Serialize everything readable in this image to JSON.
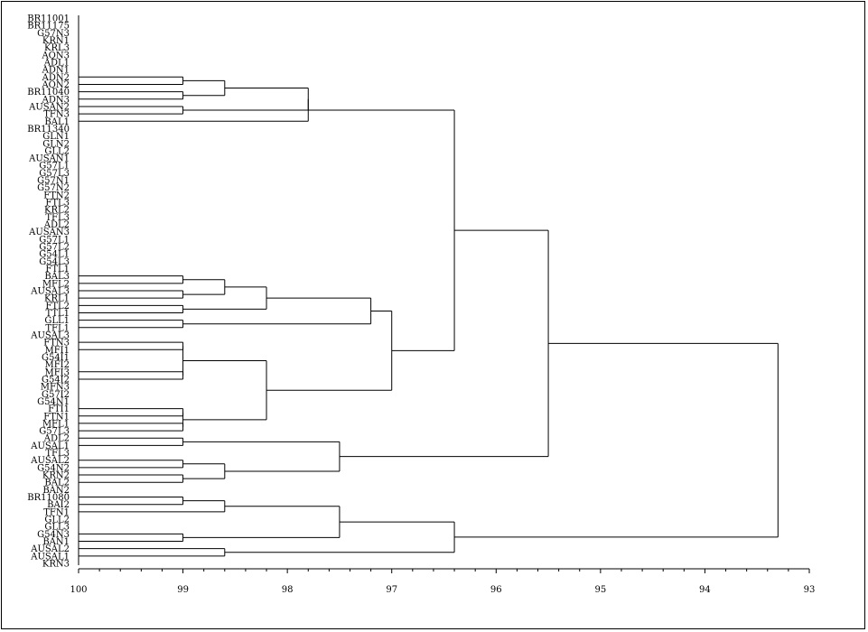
{
  "chart_data": {
    "type": "dendrogram",
    "title": "",
    "xlabel": "",
    "ylabel": "",
    "xlim": [
      100,
      93
    ],
    "x_ticks": [
      "100",
      "99",
      "98",
      "97",
      "96",
      "95",
      "94",
      "93"
    ],
    "leaves": [
      "BR11001",
      "BR11175",
      "G57N3",
      "KRN1",
      "KRL3",
      "AQN3",
      "ADL1",
      "ADN1",
      "ADN2",
      "AQN2",
      "BR11040",
      "ADN3",
      "AUSAN2",
      "TFN3",
      "BAL1",
      "BR11340",
      "GLN1",
      "GLN2",
      "GLL2",
      "AUSAN1",
      "G57L1",
      "G57L3",
      "G57N1",
      "G57N2",
      "FTN2",
      "FTL3",
      "KRL2",
      "TFL3",
      "ADL2",
      "AUSAN3",
      "G57L1",
      "G57L2",
      "G54L1",
      "G54L3",
      "FTL1",
      "BAL3",
      "MFL2",
      "AUSAL3",
      "KRL1",
      "FTL2",
      "TTL1",
      "GLL1",
      "TFL1",
      "AUSAL3",
      "FTN3",
      "MFI1",
      "G54I1",
      "MFI2",
      "MFI3",
      "G54I2",
      "MFN3",
      "G57I2",
      "G54N1",
      "FTI1",
      "FTN1",
      "MFL1",
      "G57L3",
      "ADL2",
      "AUSAL1",
      "TFL3",
      "AUSAL2",
      "G54N2",
      "KRN2",
      "BAL2",
      "BAN2",
      "BR11080",
      "BAI2",
      "TFN1",
      "GLL2",
      "GLL3",
      "G54N3",
      "BAN1",
      "AUSAL2",
      "AUSAL1",
      "KRN3"
    ],
    "merges": [
      {
        "leaves": [
          8,
          9
        ],
        "similarity": 99.0
      },
      {
        "leaves": [
          10,
          11
        ],
        "similarity": 99.0
      },
      {
        "leaves": [
          12,
          13
        ],
        "similarity": 99.0
      },
      {
        "children": [
          0,
          1
        ],
        "similarity": 98.6
      },
      {
        "children": [
          3,
          2
        ],
        "similarity": 97.8
      },
      {
        "children": [
          4,
          14
        ],
        "similarity": 97.8
      },
      {
        "leaves": [
          35,
          36
        ],
        "similarity": 99.0
      },
      {
        "leaves": [
          37,
          38
        ],
        "similarity": 99.0
      },
      {
        "children": [
          6,
          7
        ],
        "similarity": 98.6
      },
      {
        "leaves": [
          39,
          40
        ],
        "similarity": 99.0
      },
      {
        "children": [
          8,
          9
        ],
        "similarity": 98.2
      },
      {
        "leaves": [
          41,
          42
        ],
        "similarity": 99.0
      },
      {
        "children": [
          10,
          11
        ],
        "similarity": 97.2
      },
      {
        "leaves": [
          44,
          45
        ],
        "similarity": 99.0
      },
      {
        "leaves": [
          48,
          49
        ],
        "similarity": 99.0
      },
      {
        "children": [
          13,
          14
        ],
        "similarity": 99.0
      },
      {
        "leaves": [
          53,
          54
        ],
        "similarity": 99.0
      },
      {
        "leaves": [
          55,
          56
        ],
        "similarity": 99.0
      },
      {
        "children": [
          16,
          17
        ],
        "similarity": 99.0
      },
      {
        "children": [
          15,
          18
        ],
        "similarity": 98.2
      },
      {
        "children": [
          12,
          19
        ],
        "similarity": 97.0
      },
      {
        "children": [
          5,
          20
        ],
        "similarity": 96.4
      },
      {
        "leaves": [
          57,
          58
        ],
        "similarity": 99.0
      },
      {
        "leaves": [
          60,
          61
        ],
        "similarity": 99.0
      },
      {
        "leaves": [
          62,
          63
        ],
        "similarity": 99.0
      },
      {
        "children": [
          23,
          24
        ],
        "similarity": 98.6
      },
      {
        "children": [
          22,
          25
        ],
        "similarity": 97.5
      },
      {
        "children": [
          21,
          26
        ],
        "similarity": 95.5
      },
      {
        "leaves": [
          65,
          66
        ],
        "similarity": 99.0
      },
      {
        "children": [
          28,
          67
        ],
        "similarity": 98.6
      },
      {
        "leaves": [
          70,
          71
        ],
        "similarity": 99.0
      },
      {
        "children": [
          29,
          30
        ],
        "similarity": 97.5
      },
      {
        "leaves": [
          72,
          73
        ],
        "similarity": 98.6
      },
      {
        "children": [
          31,
          32
        ],
        "similarity": 96.4
      },
      {
        "children": [
          27,
          33
        ],
        "similarity": 93.3
      }
    ]
  }
}
